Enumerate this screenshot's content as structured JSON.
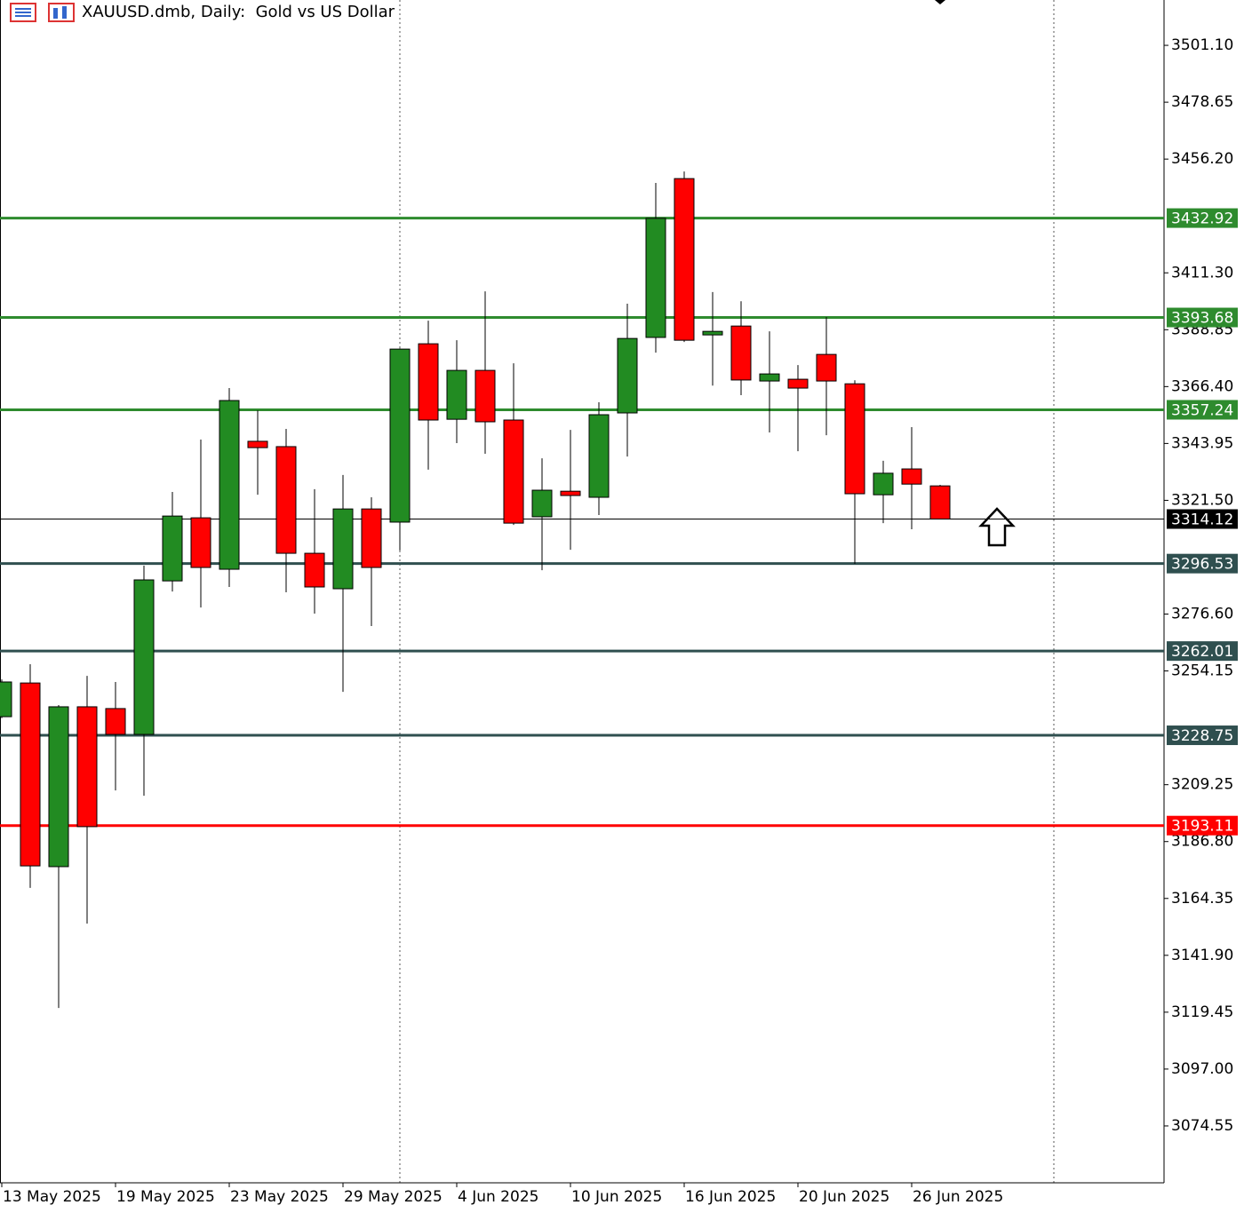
{
  "chart_data": {
    "type": "candlestick",
    "title": "XAUUSD.dmb, Daily:  Gold vs US Dollar",
    "categories": [
      "13 May 2025",
      null,
      null,
      null,
      "19 May 2025",
      null,
      null,
      null,
      "23 May 2025",
      null,
      null,
      null,
      "29 May 2025",
      null,
      null,
      null,
      "4 Jun 2025",
      null,
      null,
      null,
      "10 Jun 2025",
      null,
      null,
      null,
      "16 Jun 2025",
      null,
      null,
      null,
      "20 Jun 2025",
      null,
      null,
      null,
      "26 Jun 2025",
      null
    ],
    "open": [
      3236.1,
      3249.4,
      3176.9,
      3240.0,
      3239.3,
      3229.1,
      3289.7,
      3314.6,
      3294.3,
      3344.8,
      3342.7,
      3300.6,
      3286.6,
      3318.1,
      3312.9,
      3383.3,
      3353.5,
      3372.8,
      3353.2,
      3315.0,
      3325.1,
      3322.7,
      3356.0,
      3385.8,
      3448.5,
      3386.8,
      3390.3,
      3368.6,
      3369.3,
      3379.1,
      3367.5,
      3323.7,
      3333.9,
      3327.2
    ],
    "high": [
      3250.8,
      3256.8,
      3240.7,
      3252.2,
      3249.8,
      3295.7,
      3324.8,
      3345.5,
      3365.8,
      3357.0,
      3349.7,
      3325.9,
      3331.5,
      3322.7,
      3381.5,
      3392.4,
      3384.7,
      3404.0,
      3375.6,
      3338.1,
      3349.3,
      3360.2,
      3399.1,
      3446.8,
      3451.3,
      3403.7,
      3400.1,
      3388.2,
      3374.9,
      3393.8,
      3368.9,
      3337.1,
      3350.4,
      3327.6
    ],
    "low": [
      3235.5,
      3168.5,
      3121.1,
      3154.4,
      3207.0,
      3204.9,
      3285.5,
      3279.2,
      3287.3,
      3323.7,
      3285.2,
      3276.8,
      3245.9,
      3271.9,
      3301.7,
      3333.6,
      3344.1,
      3339.9,
      3311.8,
      3293.9,
      3302.0,
      3315.7,
      3338.8,
      3379.8,
      3384.0,
      3366.8,
      3363.0,
      3348.3,
      3340.9,
      3347.2,
      3296.4,
      3312.5,
      3310.1,
      3314.0
    ],
    "close": [
      3249.8,
      3177.2,
      3240.0,
      3192.7,
      3229.1,
      3290.1,
      3315.3,
      3295.0,
      3360.9,
      3342.3,
      3300.6,
      3287.3,
      3318.1,
      3295.0,
      3381.2,
      3353.2,
      3372.8,
      3352.5,
      3312.5,
      3325.5,
      3323.4,
      3355.3,
      3385.4,
      3432.8,
      3384.7,
      3388.2,
      3369.0,
      3371.4,
      3365.8,
      3368.6,
      3324.1,
      3332.2,
      3327.9,
      3314.12
    ],
    "up_color": "#228b22",
    "down_color": "#ff0000",
    "ylim": [
      3052.1,
      3519.0
    ],
    "yticks": [
      {
        "value": 3501.1,
        "label": "3501.10"
      },
      {
        "value": 3478.65,
        "label": "3478.65"
      },
      {
        "value": 3456.2,
        "label": "3456.20"
      },
      {
        "value": 3411.3,
        "label": "3411.30"
      },
      {
        "value": 3388.85,
        "label": "3388.85"
      },
      {
        "value": 3366.4,
        "label": "3366.40"
      },
      {
        "value": 3343.95,
        "label": "3343.95"
      },
      {
        "value": 3321.5,
        "label": "3321.50"
      },
      {
        "value": 3276.6,
        "label": "3276.60"
      },
      {
        "value": 3254.15,
        "label": "3254.15"
      },
      {
        "value": 3209.25,
        "label": "3209.25"
      },
      {
        "value": 3186.8,
        "label": "3186.80"
      },
      {
        "value": 3164.35,
        "label": "3164.35"
      },
      {
        "value": 3141.9,
        "label": "3141.90"
      },
      {
        "value": 3119.45,
        "label": "3119.45"
      },
      {
        "value": 3097.0,
        "label": "3097.00"
      },
      {
        "value": 3074.55,
        "label": "3074.55"
      }
    ],
    "levels": [
      {
        "value": 3432.92,
        "color": "#2e8b2e"
      },
      {
        "value": 3393.68,
        "color": "#2e8b2e"
      },
      {
        "value": 3357.24,
        "color": "#2e8b2e"
      },
      {
        "value": 3314.12,
        "color": "#000000"
      },
      {
        "value": 3296.53,
        "color": "#2f4f4f"
      },
      {
        "value": 3262.01,
        "color": "#2f4f4f"
      },
      {
        "value": 3228.75,
        "color": "#2f4f4f"
      },
      {
        "value": 3193.11,
        "color": "#ff0000"
      }
    ]
  }
}
